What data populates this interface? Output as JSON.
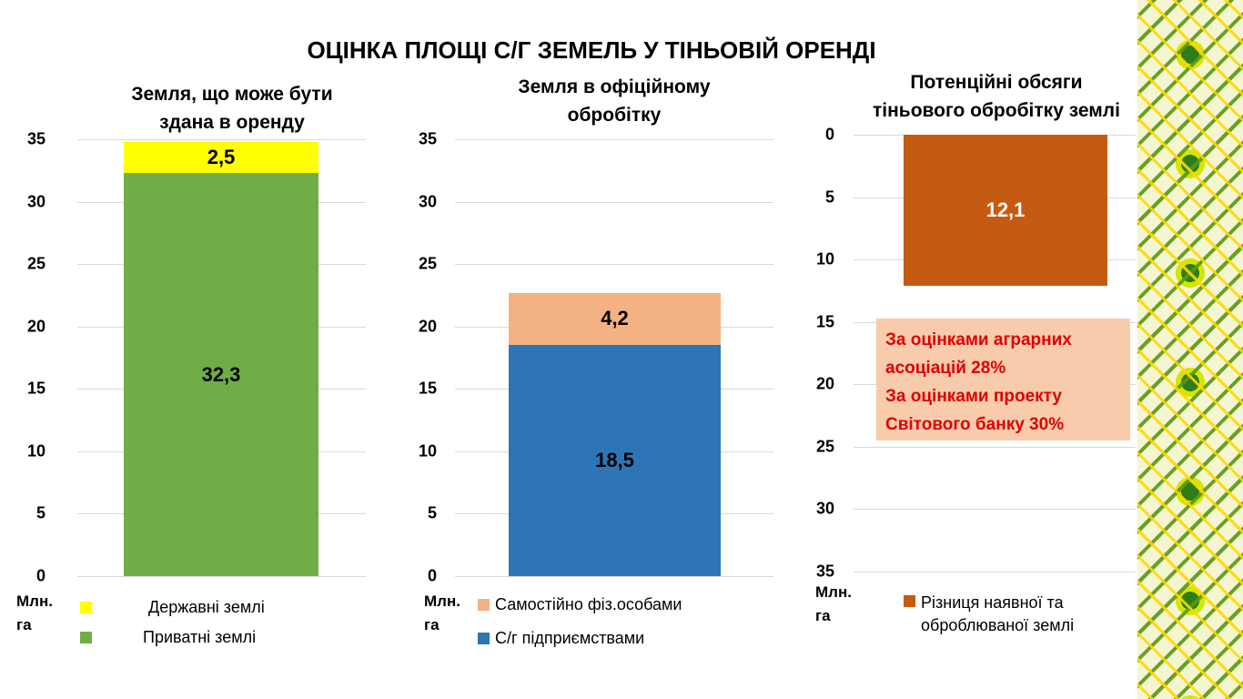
{
  "title": "ОЦІНКА ПЛОЩІ С/Г ЗЕМЕЛЬ У ТІНЬОВІЙ ОРЕНДІ",
  "unit_line1": "Млн.",
  "unit_line2": "га",
  "note": [
    "За оцінками аграрних",
    "асоціацій 28%",
    "За оцінками проекту",
    "Світового банку 30%"
  ],
  "chart_data": [
    {
      "type": "bar",
      "stacked": true,
      "title_lines": [
        "Земля, що може бути",
        "здана в оренду"
      ],
      "ylim": [
        0,
        35
      ],
      "yticks": [
        "0",
        "5",
        "10",
        "15",
        "20",
        "25",
        "30",
        "35"
      ],
      "ylabel": "Млн. га",
      "series": [
        {
          "name": "Приватні землі",
          "values": [
            32.3
          ],
          "labels": [
            "32,3"
          ],
          "color": "#70ad47",
          "label_color": "#000000"
        },
        {
          "name": "Державні землі",
          "values": [
            2.5
          ],
          "labels": [
            "2,5"
          ],
          "color": "#ffff00",
          "label_color": "#000000"
        }
      ],
      "legend": [
        "Державні землі",
        "Приватні землі"
      ],
      "legend_colors": [
        "#ffff00",
        "#70ad47"
      ]
    },
    {
      "type": "bar",
      "stacked": true,
      "title_lines": [
        "Земля в офіційному",
        "обробітку"
      ],
      "ylim": [
        0,
        35
      ],
      "yticks": [
        "0",
        "5",
        "10",
        "15",
        "20",
        "25",
        "30",
        "35"
      ],
      "ylabel": "Млн. га",
      "series": [
        {
          "name": "С/г підприємствами",
          "values": [
            18.5
          ],
          "labels": [
            "18,5"
          ],
          "color": "#2e75b6",
          "label_color": "#000000"
        },
        {
          "name": "Самостійно фіз.особами",
          "values": [
            4.2
          ],
          "labels": [
            "4,2"
          ],
          "color": "#f4b183",
          "label_color": "#000000"
        }
      ],
      "legend": [
        "Самостійно фіз.особами",
        "С/г підприємствами"
      ],
      "legend_colors": [
        "#f4b183",
        "#2e75b6"
      ]
    },
    {
      "type": "bar",
      "reversed_axis": true,
      "title_lines": [
        "Потенційні обсяги",
        "тіньового обробітку землі"
      ],
      "ylim": [
        0,
        35
      ],
      "yticks": [
        "0",
        "5",
        "10",
        "15",
        "20",
        "25",
        "30",
        "35"
      ],
      "ylabel": "Млн. га",
      "series": [
        {
          "name": "Різниця наявної та оброблюваної землі",
          "values": [
            12.1
          ],
          "labels": [
            "12,1"
          ],
          "color": "#c55a11",
          "label_color": "#ffffff"
        }
      ],
      "legend": [
        "Різниця наявної та оброблюваної землі"
      ],
      "legend_colors": [
        "#c55a11"
      ]
    }
  ]
}
